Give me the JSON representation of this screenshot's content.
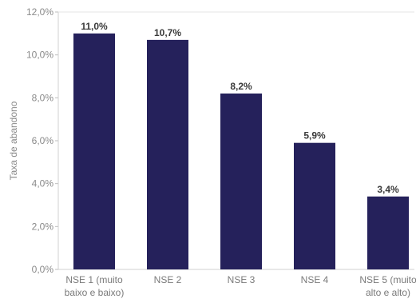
{
  "chart_data": {
    "type": "bar",
    "categories": [
      [
        "NSE 1 (muito",
        "baixo e baixo)"
      ],
      [
        "NSE 2"
      ],
      [
        "NSE 3"
      ],
      [
        "NSE 4"
      ],
      [
        "NSE 5 (muito",
        "alto e alto)"
      ]
    ],
    "values": [
      11.0,
      10.7,
      8.2,
      5.9,
      3.4
    ],
    "data_labels": [
      "11,0%",
      "10,7%",
      "8,2%",
      "5,9%",
      "3,4%"
    ],
    "ylabel": "Taxa de abandono",
    "ylim": [
      0,
      12
    ],
    "yticks": [
      0,
      2,
      4,
      6,
      8,
      10,
      12
    ],
    "ytick_labels": [
      "0,0%",
      "2,0%",
      "4,0%",
      "6,0%",
      "8,0%",
      "10,0%",
      "12,0%"
    ],
    "bar_color": "#25215b",
    "grid": false,
    "legend": "none"
  }
}
